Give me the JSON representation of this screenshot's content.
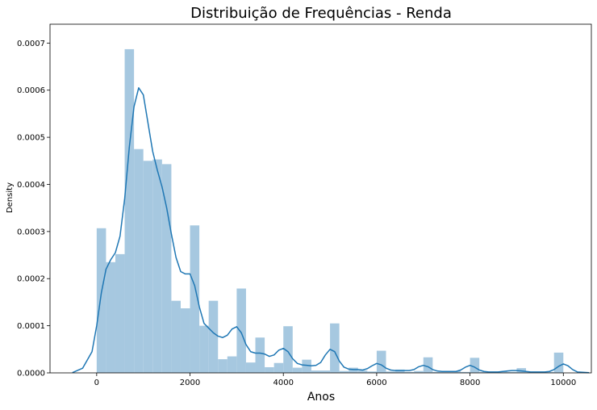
{
  "chart_data": {
    "type": "histogram",
    "title": "Distribuição de Frequências - Renda",
    "xlabel": "Anos",
    "ylabel": "Density",
    "xlim": [
      -1000,
      10600
    ],
    "ylim": [
      0,
      0.00074
    ],
    "x_ticks": [
      0,
      2000,
      4000,
      6000,
      8000,
      10000
    ],
    "y_ticks": [
      0,
      0.0001,
      0.0002,
      0.0003,
      0.0004,
      0.0005,
      0.0006,
      0.0007
    ],
    "x_tick_labels": [
      "0",
      "2000",
      "4000",
      "6000",
      "8000",
      "10000"
    ],
    "y_tick_labels": [
      "0.0000",
      "0.0001",
      "0.0002",
      "0.0003",
      "0.0004",
      "0.0005",
      "0.0006",
      "0.0007"
    ],
    "grid": false,
    "bar_color": "#a6c8e0",
    "line_color": "#1f77b4",
    "bins": {
      "start": 0,
      "width": 200,
      "density": [
        0.000307,
        0.000235,
        0.000252,
        0.000687,
        0.000475,
        0.00045,
        0.000453,
        0.000443,
        0.000153,
        0.000137,
        0.000313,
        0.0001,
        0.000153,
        2.9e-05,
        3.5e-05,
        0.000179,
        2.2e-05,
        7.5e-05,
        1.2e-05,
        2.1e-05,
        9.9e-05,
        1.1e-05,
        2.8e-05,
        5e-06,
        5e-06,
        0.000105,
        4e-06,
        1.1e-05,
        5e-06,
        3e-06,
        4.7e-05,
        3e-06,
        7e-06,
        2e-06,
        4e-06,
        3.3e-05,
        2e-06,
        3e-06,
        4e-06,
        2e-06,
        3.2e-05,
        2e-06,
        2e-06,
        3e-06,
        2e-06,
        1e-05,
        2e-06,
        2e-06,
        2e-06,
        4.3e-05
      ]
    },
    "kde": {
      "x": [
        -520,
        -300,
        -100,
        0,
        100,
        200,
        300,
        400,
        500,
        600,
        700,
        800,
        900,
        1000,
        1100,
        1200,
        1300,
        1400,
        1500,
        1600,
        1700,
        1800,
        1900,
        2000,
        2100,
        2200,
        2300,
        2400,
        2500,
        2600,
        2700,
        2800,
        2900,
        3000,
        3100,
        3200,
        3300,
        3400,
        3500,
        3600,
        3700,
        3800,
        3900,
        4000,
        4100,
        4200,
        4300,
        4400,
        4500,
        4600,
        4700,
        4800,
        4900,
        5000,
        5100,
        5200,
        5300,
        5400,
        5500,
        5600,
        5700,
        5800,
        5900,
        6000,
        6100,
        6200,
        6300,
        6400,
        6500,
        6600,
        6700,
        6800,
        6900,
        7000,
        7100,
        7200,
        7300,
        7400,
        7500,
        7600,
        7700,
        7800,
        7900,
        8000,
        8100,
        8200,
        8300,
        8400,
        8500,
        8600,
        8700,
        8800,
        8900,
        9000,
        9100,
        9200,
        9300,
        9400,
        9500,
        9600,
        9700,
        9800,
        9900,
        10000,
        10100,
        10200,
        10300,
        10550
      ],
      "y": [
        5e-07,
        1e-05,
        4.5e-05,
        0.0001,
        0.00017,
        0.00022,
        0.00024,
        0.000255,
        0.00029,
        0.00037,
        0.00048,
        0.000565,
        0.000605,
        0.00059,
        0.00053,
        0.00047,
        0.00043,
        0.000395,
        0.00035,
        0.000295,
        0.000245,
        0.000215,
        0.00021,
        0.00021,
        0.000185,
        0.00014,
        0.000105,
        9.5e-05,
        8.5e-05,
        7.8e-05,
        7.5e-05,
        8e-05,
        9.3e-05,
        9.8e-05,
        8.5e-05,
        6e-05,
        4.5e-05,
        4.2e-05,
        4.2e-05,
        4e-05,
        3.5e-05,
        3.8e-05,
        4.8e-05,
        5.2e-05,
        4.5e-05,
        3e-05,
        2e-05,
        1.7e-05,
        1.6e-05,
        1.5e-05,
        1.6e-05,
        2.2e-05,
        3.8e-05,
        5e-05,
        4.5e-05,
        2.5e-05,
        1.2e-05,
        8e-06,
        7e-06,
        7e-06,
        6e-06,
        9e-06,
        1.5e-05,
        2e-05,
        1.7e-05,
        1e-05,
        6e-06,
        5e-06,
        5e-06,
        5e-06,
        5e-06,
        7e-06,
        1.3e-05,
        1.6e-05,
        1.3e-05,
        7e-06,
        4e-06,
        3e-06,
        3e-06,
        3e-06,
        3e-06,
        6e-06,
        1.2e-05,
        1.6e-05,
        1.2e-05,
        6e-06,
        3e-06,
        2e-06,
        2e-06,
        2e-06,
        3e-06,
        4e-06,
        5e-06,
        5e-06,
        4e-06,
        3e-06,
        2e-06,
        2e-06,
        2e-06,
        2e-06,
        3e-06,
        7e-06,
        1.4e-05,
        1.9e-05,
        1.5e-05,
        7e-06,
        2e-06,
        5e-07
      ]
    }
  }
}
